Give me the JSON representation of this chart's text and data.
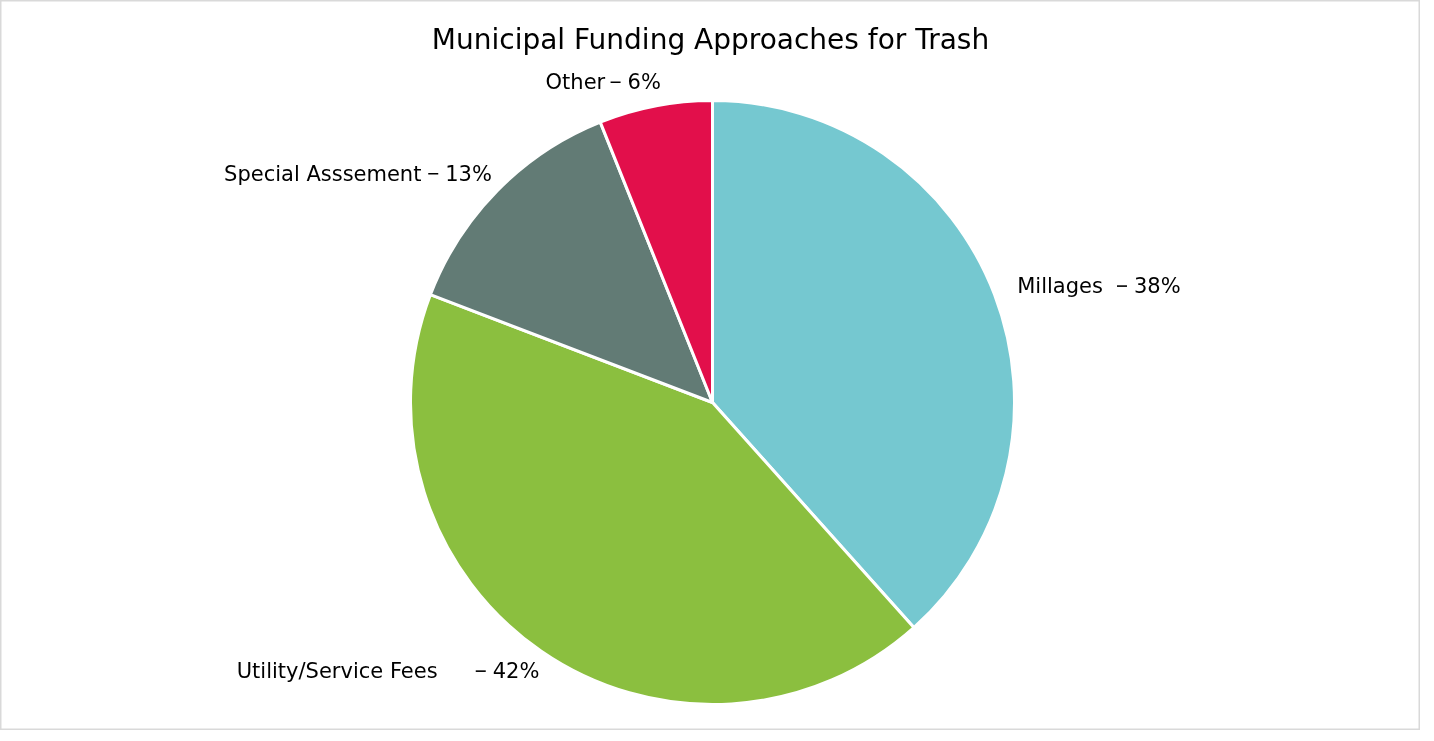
{
  "chart_data": {
    "type": "pie",
    "title": "Municipal Funding Approaches for Trash",
    "categories": [
      "Millages",
      "Utility/Service Fees",
      "Special Asssement",
      "Other"
    ],
    "values": [
      38,
      42,
      13,
      6
    ],
    "value_labels": [
      "38%",
      "42%",
      "13%",
      "6%"
    ],
    "colors": [
      "#75c8d0",
      "#8bbf3f",
      "#627b75",
      "#e20f4b"
    ],
    "legend": false
  }
}
